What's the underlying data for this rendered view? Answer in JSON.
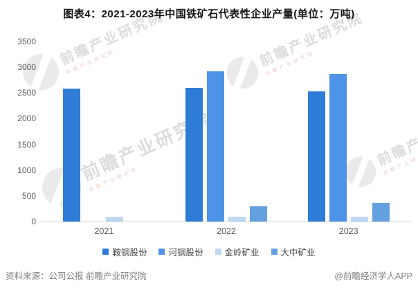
{
  "chart_data": {
    "type": "bar",
    "title": "图表4：2021-2023年中国铁矿石代表性企业产量(单位：万吨)",
    "categories": [
      "2021",
      "2022",
      "2023"
    ],
    "series": [
      {
        "name": "鞍钢股份",
        "color": "#2E7CD6",
        "values": [
          2580,
          2600,
          2530
        ]
      },
      {
        "name": "河钢股份",
        "color": "#4F93E8",
        "values": [
          null,
          2920,
          2870
        ]
      },
      {
        "name": "金岭矿业",
        "color": "#BDD7F0",
        "values": [
          95,
          90,
          95
        ]
      },
      {
        "name": "大中矿业",
        "color": "#63A0E0",
        "values": [
          null,
          300,
          365
        ]
      }
    ],
    "xlabel": "",
    "ylabel": "",
    "ylim": [
      0,
      3500
    ],
    "yticks": [
      0,
      500,
      1000,
      1500,
      2000,
      2500,
      3000,
      3500
    ],
    "grid": false,
    "legend_position": "bottom"
  },
  "footer": {
    "source": "资料来源：公司公报 前瞻产业研究院",
    "credit": "@前瞻经济学人APP"
  },
  "watermark": {
    "text": "前瞻产业研究院"
  }
}
